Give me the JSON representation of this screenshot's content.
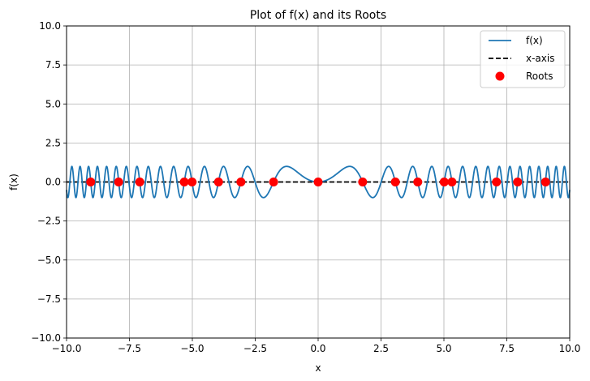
{
  "chart_data": {
    "type": "line",
    "title": "Plot of f(x) and its Roots",
    "xlabel": "x",
    "ylabel": "f(x)",
    "xlim": [
      -10,
      10
    ],
    "ylim": [
      -10,
      10
    ],
    "grid": true,
    "legend_position": "top-right",
    "x_ticks": [
      -10,
      -7.5,
      -5,
      -2.5,
      0,
      2.5,
      5,
      7.5,
      10
    ],
    "x_tick_labels": [
      "−10.0",
      "−7.5",
      "−5.0",
      "−2.5",
      "0.0",
      "2.5",
      "5.0",
      "7.5",
      "10.0"
    ],
    "y_ticks": [
      -10,
      -7.5,
      -5,
      -2.5,
      0,
      2.5,
      5,
      7.5,
      10
    ],
    "y_tick_labels": [
      "−10.0",
      "−7.5",
      "−5.0",
      "−2.5",
      "0.0",
      "2.5",
      "5.0",
      "7.5",
      "10.0"
    ],
    "series": [
      {
        "name": "f(x)",
        "kind": "line",
        "color": "#1f77b4",
        "function": "sin(x^2)",
        "x_range": [
          -10,
          10
        ]
      },
      {
        "name": "x-axis",
        "kind": "dashed-line",
        "color": "#000000",
        "y": 0,
        "x_range": [
          -10,
          10
        ]
      },
      {
        "name": "Roots",
        "kind": "scatter",
        "color": "#ff0000",
        "x": [
          -9.04,
          -7.93,
          -7.09,
          -5.32,
          -5.01,
          -3.96,
          -3.07,
          -1.77,
          0,
          1.77,
          3.07,
          3.96,
          5.01,
          5.32,
          7.09,
          7.93,
          9.04
        ],
        "y": [
          0,
          0,
          0,
          0,
          0,
          0,
          0,
          0,
          0,
          0,
          0,
          0,
          0,
          0,
          0,
          0,
          0
        ]
      }
    ]
  },
  "colors": {
    "grid": "#b0b0b0",
    "curve": "#1f77b4",
    "roots": "#ff0000",
    "axis_line": "#000000"
  }
}
